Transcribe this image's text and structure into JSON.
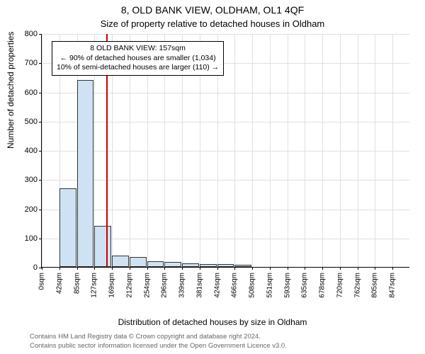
{
  "title_line1": "8, OLD BANK VIEW, OLDHAM, OL1 4QF",
  "title_line2": "Size of property relative to detached houses in Oldham",
  "ylabel": "Number of detached properties",
  "xlabel": "Distribution of detached houses by size in Oldham",
  "chart": {
    "type": "histogram",
    "ylim": [
      0,
      800
    ],
    "ytick_step": 100,
    "background_color": "#ffffff",
    "grid_color": "#e0e0e0",
    "bar_fill": "#cfe2f3",
    "bar_border": "#333333",
    "ref_line_color": "#cc0000",
    "ref_line_value": 157,
    "bin_width": 42.5,
    "bins": [
      {
        "label": "0sqm",
        "x": 0,
        "count": 0
      },
      {
        "label": "42sqm",
        "x": 42.5,
        "count": 270
      },
      {
        "label": "85sqm",
        "x": 85,
        "count": 640
      },
      {
        "label": "127sqm",
        "x": 127.5,
        "count": 140
      },
      {
        "label": "169sqm",
        "x": 170,
        "count": 40
      },
      {
        "label": "212sqm",
        "x": 212.5,
        "count": 35
      },
      {
        "label": "254sqm",
        "x": 255,
        "count": 20
      },
      {
        "label": "296sqm",
        "x": 297.5,
        "count": 18
      },
      {
        "label": "339sqm",
        "x": 340,
        "count": 12
      },
      {
        "label": "381sqm",
        "x": 382.5,
        "count": 10
      },
      {
        "label": "424sqm",
        "x": 425,
        "count": 10
      },
      {
        "label": "466sqm",
        "x": 467.5,
        "count": 8
      },
      {
        "label": "508sqm",
        "x": 510,
        "count": 0
      },
      {
        "label": "551sqm",
        "x": 552.5,
        "count": 0
      },
      {
        "label": "593sqm",
        "x": 595,
        "count": 0
      },
      {
        "label": "635sqm",
        "x": 637.5,
        "count": 0
      },
      {
        "label": "678sqm",
        "x": 680,
        "count": 0
      },
      {
        "label": "720sqm",
        "x": 722.5,
        "count": 0
      },
      {
        "label": "762sqm",
        "x": 765,
        "count": 0
      },
      {
        "label": "805sqm",
        "x": 807.5,
        "count": 0
      },
      {
        "label": "847sqm",
        "x": 850,
        "count": 0
      }
    ],
    "x_max": 892.5,
    "annotation": {
      "line1": "8 OLD BANK VIEW: 157sqm",
      "line2": "← 90% of detached houses are smaller (1,034)",
      "line3": "10% of semi-detached houses are larger (110) →"
    }
  },
  "footer": {
    "line1": "Contains HM Land Registry data © Crown copyright and database right 2024.",
    "line2": "Contains public sector information licensed under the Open Government Licence v3.0."
  },
  "fonts": {
    "title_fontsize": 14,
    "subtitle_fontsize": 13,
    "axis_label_fontsize": 12,
    "tick_fontsize": 11,
    "annotation_fontsize": 10.5,
    "footer_fontsize": 9.5
  },
  "colors": {
    "text": "#000000",
    "footer_text": "#666666"
  }
}
